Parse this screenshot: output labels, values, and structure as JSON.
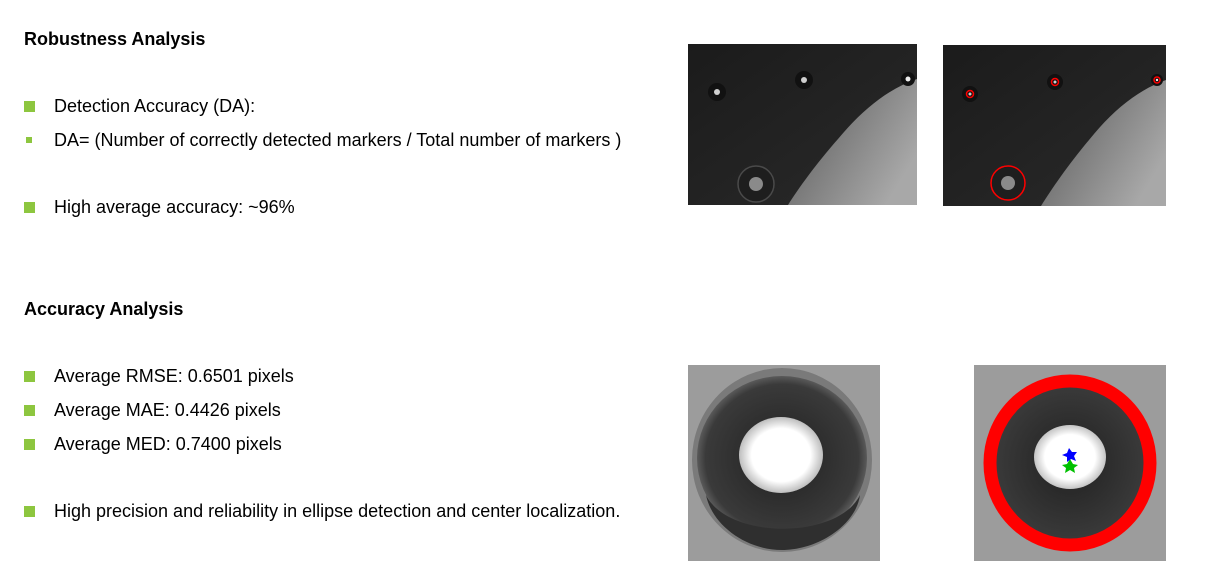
{
  "robustness": {
    "title": "Robustness Analysis",
    "items": [
      "Detection Accuracy (DA):",
      "DA= (Number of correctly detected markers / Total number of markers )",
      "High average accuracy: ~96%"
    ]
  },
  "accuracy": {
    "title": "Accuracy Analysis",
    "items": [
      "Average RMSE: 0.6501 pixels",
      "Average MAE: 0.4426 pixels",
      "Average MED: 0.7400 pixels",
      "High precision and reliability in ellipse detection and center localization."
    ]
  },
  "colors": {
    "bullet": "#8dc63f",
    "detection_outline": "#ff0000",
    "detected_center": "#0000ff",
    "ground_truth_center": "#00c000"
  }
}
